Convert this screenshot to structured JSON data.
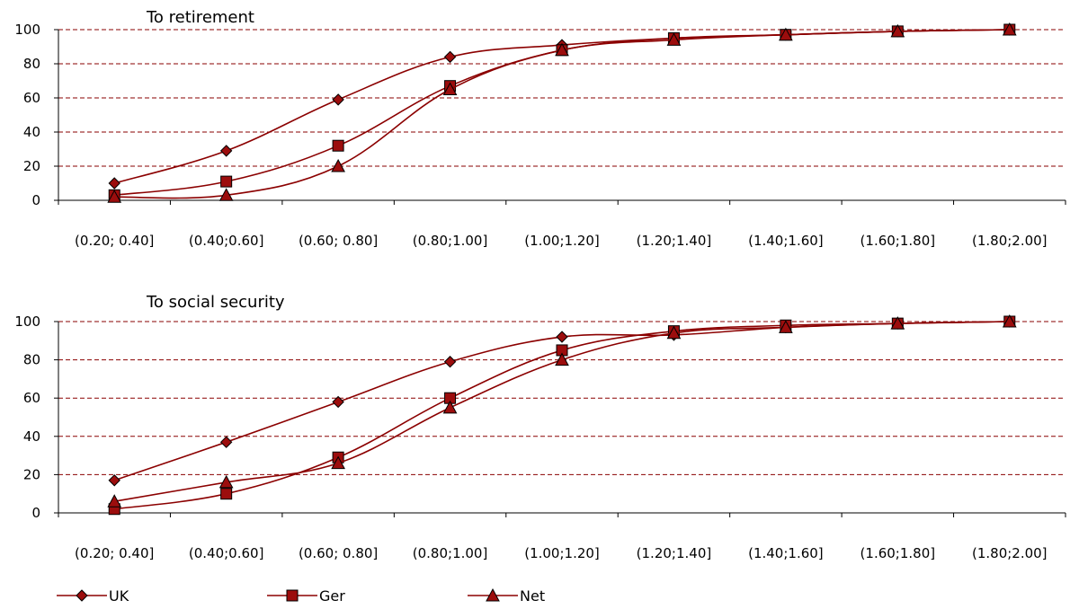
{
  "series_style": {
    "line_color": "#8b0000",
    "marker_fill": "#9c0d0d",
    "grid_color": "#8a0000"
  },
  "legend": [
    "UK",
    "Ger",
    "Net"
  ],
  "chart_data": [
    {
      "type": "line",
      "title": "To retirement",
      "categories": [
        "(0.20; 0.40]",
        "(0.40;0.60]",
        "(0.60; 0.80]",
        "(0.80;1.00]",
        "(1.00;1.20]",
        "(1.20;1.40]",
        "(1.40;1.60]",
        "(1.60;1.80]",
        "(1.80;2.00]"
      ],
      "ylim": [
        0,
        100
      ],
      "yticks": [
        0,
        20,
        40,
        60,
        80,
        100
      ],
      "grid": true,
      "series": [
        {
          "name": "UK",
          "marker": "diamond",
          "values": [
            10,
            29,
            59,
            84,
            91,
            95,
            97,
            99,
            100
          ]
        },
        {
          "name": "Ger",
          "marker": "square",
          "values": [
            3,
            11,
            32,
            67,
            88,
            95,
            97,
            99,
            100
          ]
        },
        {
          "name": "Net",
          "marker": "triangle",
          "values": [
            2,
            3,
            20,
            65,
            88,
            94,
            97,
            99,
            100
          ]
        }
      ]
    },
    {
      "type": "line",
      "title": "To social security",
      "categories": [
        "(0.20; 0.40]",
        "(0.40;0.60]",
        "(0.60; 0.80]",
        "(0.80;1.00]",
        "(1.00;1.20]",
        "(1.20;1.40]",
        "(1.40;1.60]",
        "(1.60;1.80]",
        "(1.80;2.00]"
      ],
      "ylim": [
        0,
        100
      ],
      "yticks": [
        0,
        20,
        40,
        60,
        80,
        100
      ],
      "grid": true,
      "series": [
        {
          "name": "UK",
          "marker": "diamond",
          "values": [
            17,
            37,
            58,
            79,
            92,
            93,
            97,
            99,
            100
          ]
        },
        {
          "name": "Ger",
          "marker": "square",
          "values": [
            2,
            10,
            29,
            60,
            85,
            95,
            98,
            99,
            100
          ]
        },
        {
          "name": "Net",
          "marker": "triangle",
          "values": [
            6,
            16,
            26,
            55,
            80,
            94,
            97,
            99,
            100
          ]
        }
      ]
    }
  ]
}
